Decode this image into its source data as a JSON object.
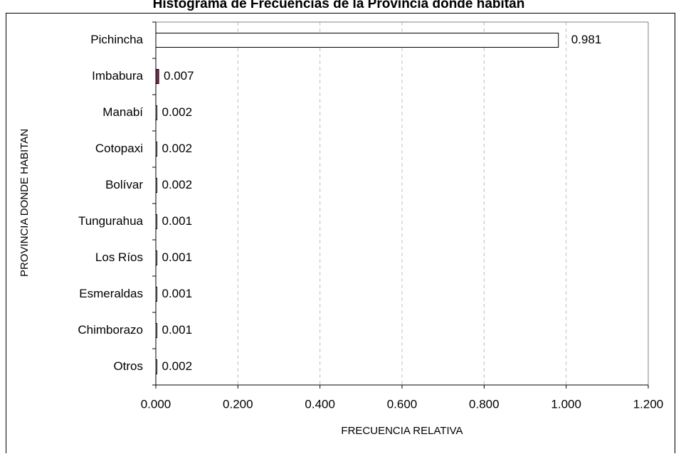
{
  "chart_data": {
    "type": "bar",
    "orientation": "horizontal",
    "title": "Histograma de Frecuencias de la Provincia donde habitan",
    "xlabel": "FRECUENCIA RELATIVA",
    "ylabel": "PROVINCIA DONDE HABITAN",
    "xlim": [
      0,
      1.2
    ],
    "xticks": [
      "0.000",
      "0.200",
      "0.400",
      "0.600",
      "0.800",
      "1.000",
      "1.200"
    ],
    "grid": "vertical-dashed",
    "categories": [
      "Pichincha",
      "Imbabura",
      "Manabí",
      "Cotopaxi",
      "Bolívar",
      "Tungurahua",
      "Los Ríos",
      "Esmeraldas",
      "Chimborazo",
      "Otros"
    ],
    "values": [
      0.981,
      0.007,
      0.002,
      0.002,
      0.002,
      0.001,
      0.001,
      0.001,
      0.001,
      0.002
    ],
    "value_labels": [
      "0.981",
      "0.007",
      "0.002",
      "0.002",
      "0.002",
      "0.001",
      "0.001",
      "0.001",
      "0.001",
      "0.002"
    ],
    "colors": {
      "bar_fill": "#ffffff",
      "highlight_fill": "#7a2d52",
      "bar_stroke": "#000000",
      "grid": "#c0c0c0",
      "axis": "#000000"
    },
    "highlight_category": "Imbabura"
  }
}
